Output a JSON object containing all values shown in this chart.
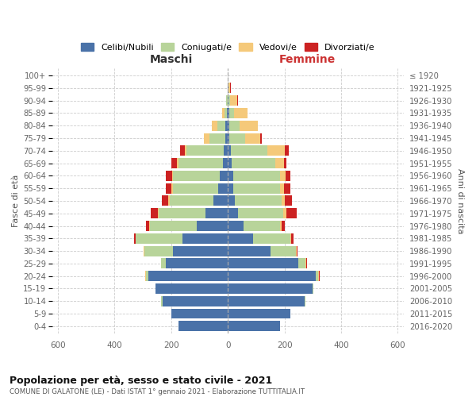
{
  "age_groups": [
    "0-4",
    "5-9",
    "10-14",
    "15-19",
    "20-24",
    "25-29",
    "30-34",
    "35-39",
    "40-44",
    "45-49",
    "50-54",
    "55-59",
    "60-64",
    "65-69",
    "70-74",
    "75-79",
    "80-84",
    "85-89",
    "90-94",
    "95-99",
    "100+"
  ],
  "birth_years": [
    "2016-2020",
    "2011-2015",
    "2006-2010",
    "2001-2005",
    "1996-2000",
    "1991-1995",
    "1986-1990",
    "1981-1985",
    "1976-1980",
    "1971-1975",
    "1966-1970",
    "1961-1965",
    "1956-1960",
    "1951-1955",
    "1946-1950",
    "1941-1945",
    "1936-1940",
    "1931-1935",
    "1926-1930",
    "1921-1925",
    "≤ 1920"
  ],
  "colors": {
    "celibi": "#4a72a8",
    "coniugati": "#b8d49a",
    "vedovi": "#f5c97a",
    "divorziati": "#cc2222"
  },
  "males": {
    "celibi": [
      175,
      200,
      230,
      255,
      280,
      220,
      195,
      160,
      110,
      80,
      50,
      35,
      28,
      18,
      15,
      10,
      8,
      4,
      2,
      1,
      0
    ],
    "coniugati": [
      0,
      0,
      5,
      2,
      10,
      15,
      100,
      165,
      165,
      165,
      155,
      160,
      165,
      155,
      130,
      55,
      30,
      8,
      3,
      1,
      0
    ],
    "vedovi": [
      0,
      0,
      2,
      0,
      2,
      2,
      2,
      2,
      2,
      3,
      5,
      5,
      5,
      8,
      8,
      20,
      20,
      8,
      2,
      0,
      0
    ],
    "divorziati": [
      0,
      0,
      0,
      0,
      0,
      0,
      2,
      5,
      12,
      25,
      22,
      20,
      20,
      18,
      15,
      0,
      0,
      0,
      0,
      0,
      0
    ]
  },
  "females": {
    "nubili": [
      185,
      220,
      270,
      300,
      310,
      250,
      150,
      90,
      55,
      35,
      25,
      20,
      18,
      12,
      10,
      5,
      5,
      5,
      3,
      2,
      0
    ],
    "coniugate": [
      0,
      0,
      5,
      2,
      10,
      25,
      90,
      130,
      130,
      160,
      165,
      165,
      165,
      155,
      130,
      55,
      35,
      18,
      5,
      1,
      0
    ],
    "vedove": [
      0,
      0,
      0,
      0,
      2,
      2,
      3,
      3,
      5,
      12,
      10,
      12,
      20,
      30,
      60,
      55,
      65,
      45,
      25,
      5,
      0
    ],
    "divorziate": [
      0,
      0,
      0,
      0,
      2,
      2,
      2,
      8,
      12,
      35,
      25,
      25,
      18,
      10,
      15,
      5,
      2,
      2,
      2,
      2,
      0
    ]
  },
  "xlim": 620,
  "xticks": [
    -600,
    -400,
    -200,
    0,
    200,
    400,
    600
  ],
  "title": "Popolazione per età, sesso e stato civile - 2021",
  "subtitle": "COMUNE DI GALATONE (LE) - Dati ISTAT 1° gennaio 2021 - Elaborazione TUTTITALIA.IT",
  "ylabel_left": "Fasce di età",
  "ylabel_right": "Anni di nascita",
  "xlabel_left": "Maschi",
  "xlabel_right": "Femmine",
  "legend_labels": [
    "Celibi/Nubili",
    "Coniugati/e",
    "Vedovi/e",
    "Divorziati/e"
  ]
}
